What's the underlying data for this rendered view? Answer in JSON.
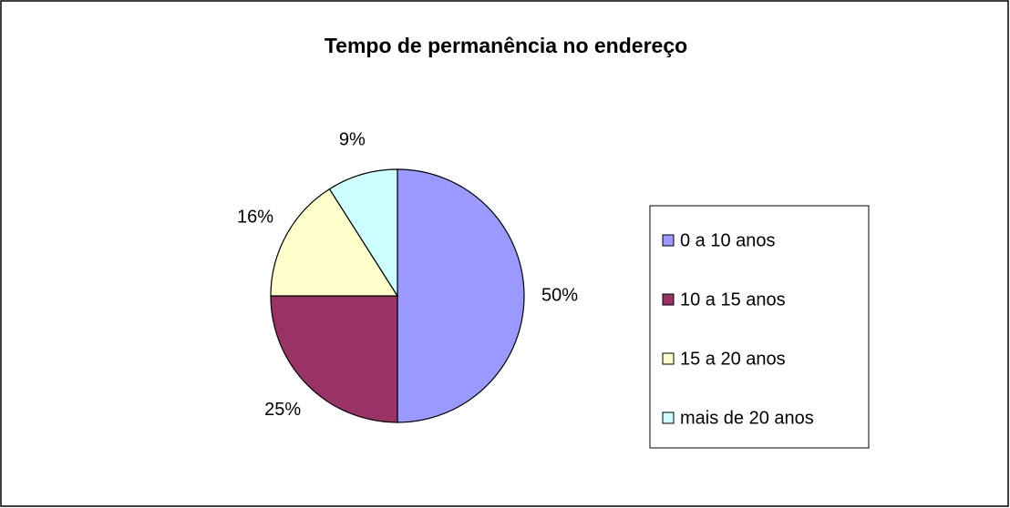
{
  "chart_data": {
    "type": "pie",
    "title": "Tempo de permanência no endereço",
    "categories": [
      "0 a 10 anos",
      "10 a 15 anos",
      "15 a 20 anos",
      "mais de 20 anos"
    ],
    "values": [
      50,
      25,
      16,
      9
    ],
    "value_labels": [
      "50%",
      "25%",
      "16%",
      "9%"
    ],
    "colors": [
      "#9999ff",
      "#993366",
      "#ffffcc",
      "#ccffff"
    ],
    "legend": "right"
  }
}
